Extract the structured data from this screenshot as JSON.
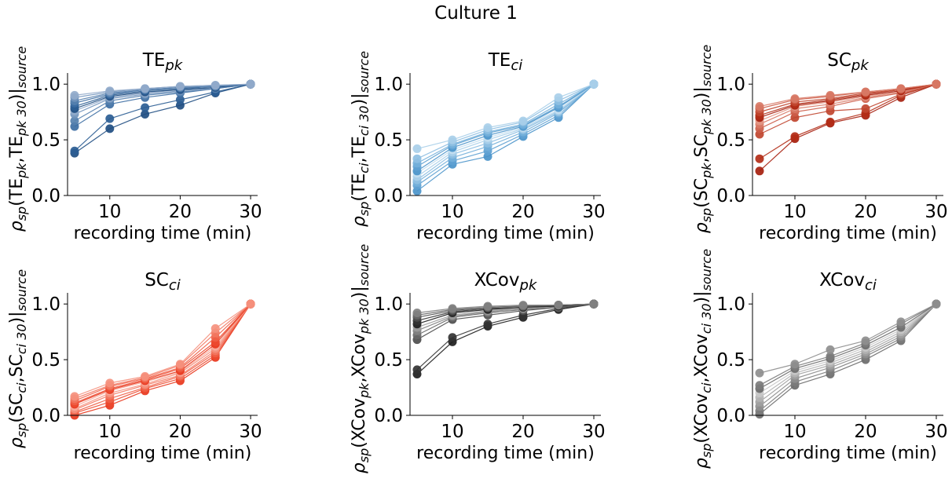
{
  "figure_title": "Culture 1",
  "chart_data": [
    {
      "type": "line",
      "title": {
        "main": "TE",
        "sub": "pk"
      },
      "xlabel": "recording time (min)",
      "ylabel": {
        "prefix": "ρ",
        "prefix_sub": "sp",
        "mid": "(TE",
        "mid_sub": "pk",
        "comma": ",TE",
        "comma_sub": "pk 30",
        "suffix": ")|",
        "suffix_sub": "source"
      },
      "x": [
        5,
        10,
        15,
        20,
        25,
        30
      ],
      "xticks": [
        10,
        20,
        30
      ],
      "xtick_labels": [
        "10",
        "20",
        "30"
      ],
      "yticks": [
        0,
        0.5,
        1
      ],
      "ytick_labels": [
        "0.0",
        "0.5",
        "1.0"
      ],
      "xlim": [
        4,
        31
      ],
      "ylim": [
        0,
        1.1
      ],
      "grid": false,
      "colors": [
        "#1f4e82",
        "#2b5d94",
        "#3d6ea3",
        "#5580ae",
        "#7194bc",
        "#92abcb"
      ],
      "series": [
        {
          "values": [
            0.38,
            0.6,
            0.73,
            0.81,
            0.92,
            1.0
          ]
        },
        {
          "values": [
            0.4,
            0.69,
            0.79,
            0.86,
            0.93,
            1.0
          ]
        },
        {
          "values": [
            0.62,
            0.82,
            0.88,
            0.92,
            0.96,
            1.0
          ]
        },
        {
          "values": [
            0.67,
            0.85,
            0.9,
            0.93,
            0.96,
            1.0
          ]
        },
        {
          "values": [
            0.73,
            0.87,
            0.91,
            0.94,
            0.97,
            1.0
          ]
        },
        {
          "values": [
            0.76,
            0.88,
            0.92,
            0.95,
            0.97,
            1.0
          ]
        },
        {
          "values": [
            0.78,
            0.89,
            0.93,
            0.95,
            0.97,
            1.0
          ]
        },
        {
          "values": [
            0.8,
            0.9,
            0.94,
            0.96,
            0.98,
            1.0
          ]
        },
        {
          "values": [
            0.83,
            0.91,
            0.95,
            0.97,
            0.98,
            1.0
          ]
        },
        {
          "values": [
            0.85,
            0.92,
            0.95,
            0.97,
            0.98,
            1.0
          ]
        },
        {
          "values": [
            0.88,
            0.93,
            0.96,
            0.98,
            0.99,
            1.0
          ]
        },
        {
          "values": [
            0.9,
            0.94,
            0.96,
            0.98,
            0.99,
            1.0
          ]
        }
      ]
    },
    {
      "type": "line",
      "title": {
        "main": "TE",
        "sub": "ci"
      },
      "xlabel": "recording time (min)",
      "ylabel": {
        "prefix": "ρ",
        "prefix_sub": "sp",
        "mid": "(TE",
        "mid_sub": "ci",
        "comma": ",TE",
        "comma_sub": "ci 30",
        "suffix": ")|",
        "suffix_sub": "source"
      },
      "x": [
        5,
        10,
        15,
        20,
        25,
        30
      ],
      "xticks": [
        10,
        20,
        30
      ],
      "xtick_labels": [
        "10",
        "20",
        "30"
      ],
      "yticks": [
        0,
        0.5,
        1
      ],
      "ytick_labels": [
        "0.0",
        "0.5",
        "1.0"
      ],
      "xlim": [
        4,
        31
      ],
      "ylim": [
        0,
        1.1
      ],
      "grid": false,
      "colors": [
        "#4a94ca",
        "#5ea1d2",
        "#74b0da",
        "#8ebfe2",
        "#a9cfe9",
        "#c3def0"
      ],
      "series": [
        {
          "values": [
            0.04,
            0.28,
            0.35,
            0.53,
            0.7,
            1.0
          ]
        },
        {
          "values": [
            0.09,
            0.31,
            0.4,
            0.55,
            0.72,
            1.0
          ]
        },
        {
          "values": [
            0.12,
            0.34,
            0.44,
            0.57,
            0.74,
            1.0
          ]
        },
        {
          "values": [
            0.14,
            0.37,
            0.47,
            0.59,
            0.75,
            1.0
          ]
        },
        {
          "values": [
            0.17,
            0.39,
            0.5,
            0.6,
            0.76,
            1.0
          ]
        },
        {
          "values": [
            0.2,
            0.41,
            0.52,
            0.61,
            0.77,
            1.0
          ]
        },
        {
          "values": [
            0.22,
            0.43,
            0.54,
            0.62,
            0.79,
            1.0
          ]
        },
        {
          "values": [
            0.26,
            0.45,
            0.56,
            0.63,
            0.8,
            1.0
          ]
        },
        {
          "values": [
            0.29,
            0.46,
            0.57,
            0.64,
            0.82,
            1.0
          ]
        },
        {
          "values": [
            0.33,
            0.48,
            0.59,
            0.66,
            0.85,
            1.0
          ]
        },
        {
          "values": [
            0.42,
            0.5,
            0.61,
            0.67,
            0.88,
            1.0
          ]
        }
      ]
    },
    {
      "type": "line",
      "title": {
        "main": "SC",
        "sub": "pk"
      },
      "xlabel": "recording time (min)",
      "ylabel": {
        "prefix": "ρ",
        "prefix_sub": "sp",
        "mid": "(SC",
        "mid_sub": "pk",
        "comma": ",SC",
        "comma_sub": "pk 30",
        "suffix": ")|",
        "suffix_sub": "source"
      },
      "x": [
        5,
        10,
        15,
        20,
        25,
        30
      ],
      "xticks": [
        10,
        20,
        30
      ],
      "xtick_labels": [
        "10",
        "20",
        "30"
      ],
      "yticks": [
        0,
        0.5,
        1
      ],
      "ytick_labels": [
        "0.0",
        "0.5",
        "1.0"
      ],
      "xlim": [
        4,
        31
      ],
      "ylim": [
        0,
        1.1
      ],
      "grid": false,
      "colors": [
        "#a61f0e",
        "#b32d17",
        "#c0452f",
        "#cc5d49",
        "#d87966",
        "#e39684"
      ],
      "series": [
        {
          "values": [
            0.22,
            0.51,
            0.65,
            0.72,
            0.88,
            1.0
          ]
        },
        {
          "values": [
            0.33,
            0.53,
            0.66,
            0.74,
            0.9,
            1.0
          ]
        },
        {
          "values": [
            0.55,
            0.7,
            0.76,
            0.78,
            0.91,
            1.0
          ]
        },
        {
          "values": [
            0.6,
            0.75,
            0.8,
            0.87,
            0.92,
            1.0
          ]
        },
        {
          "values": [
            0.64,
            0.78,
            0.82,
            0.88,
            0.93,
            1.0
          ]
        },
        {
          "values": [
            0.67,
            0.8,
            0.84,
            0.89,
            0.94,
            1.0
          ]
        },
        {
          "values": [
            0.7,
            0.81,
            0.85,
            0.9,
            0.94,
            1.0
          ]
        },
        {
          "values": [
            0.72,
            0.82,
            0.86,
            0.91,
            0.95,
            1.0
          ]
        },
        {
          "values": [
            0.75,
            0.84,
            0.87,
            0.92,
            0.95,
            1.0
          ]
        },
        {
          "values": [
            0.78,
            0.86,
            0.89,
            0.93,
            0.96,
            1.0
          ]
        },
        {
          "values": [
            0.8,
            0.87,
            0.9,
            0.93,
            0.96,
            1.0
          ]
        }
      ]
    },
    {
      "type": "line",
      "title": {
        "main": "SC",
        "sub": "ci"
      },
      "xlabel": "recording time (min)",
      "ylabel": {
        "prefix": "ρ",
        "prefix_sub": "sp",
        "mid": "(SC",
        "mid_sub": "ci",
        "comma": ",SC",
        "comma_sub": "ci 30",
        "suffix": ")|",
        "suffix_sub": "source"
      },
      "x": [
        5,
        10,
        15,
        20,
        25,
        30
      ],
      "xticks": [
        10,
        20,
        30
      ],
      "xtick_labels": [
        "10",
        "20",
        "30"
      ],
      "yticks": [
        0,
        0.5,
        1
      ],
      "ytick_labels": [
        "0.0",
        "0.5",
        "1.0"
      ],
      "xlim": [
        4,
        31
      ],
      "ylim": [
        0,
        1.1
      ],
      "grid": false,
      "colors": [
        "#e8361c",
        "#ec4a30",
        "#ef5f47",
        "#f27761",
        "#f5917e",
        "#f8ac9d"
      ],
      "series": [
        {
          "values": [
            0.0,
            0.09,
            0.22,
            0.31,
            0.52,
            1.0
          ]
        },
        {
          "values": [
            0.02,
            0.12,
            0.24,
            0.33,
            0.54,
            1.0
          ]
        },
        {
          "values": [
            0.03,
            0.15,
            0.25,
            0.35,
            0.56,
            1.0
          ]
        },
        {
          "values": [
            0.05,
            0.18,
            0.27,
            0.36,
            0.58,
            1.0
          ]
        },
        {
          "values": [
            0.06,
            0.2,
            0.28,
            0.38,
            0.6,
            1.0
          ]
        },
        {
          "values": [
            0.08,
            0.22,
            0.3,
            0.39,
            0.62,
            1.0
          ]
        },
        {
          "values": [
            0.1,
            0.23,
            0.31,
            0.4,
            0.64,
            1.0
          ]
        },
        {
          "values": [
            0.11,
            0.24,
            0.32,
            0.42,
            0.66,
            1.0
          ]
        },
        {
          "values": [
            0.13,
            0.26,
            0.33,
            0.43,
            0.7,
            1.0
          ]
        },
        {
          "values": [
            0.15,
            0.27,
            0.34,
            0.45,
            0.74,
            1.0
          ]
        },
        {
          "values": [
            0.17,
            0.29,
            0.35,
            0.46,
            0.78,
            1.0
          ]
        }
      ]
    },
    {
      "type": "line",
      "title": {
        "main": "XCov",
        "sub": "pk"
      },
      "xlabel": "recording time (min)",
      "ylabel": {
        "prefix": "ρ",
        "prefix_sub": "sp",
        "mid": "(XCov",
        "mid_sub": "pk",
        "comma": ",XCov",
        "comma_sub": "pk 30",
        "suffix": ")|",
        "suffix_sub": "source"
      },
      "x": [
        5,
        10,
        15,
        20,
        25,
        30
      ],
      "xticks": [
        10,
        20,
        30
      ],
      "xtick_labels": [
        "10",
        "20",
        "30"
      ],
      "yticks": [
        0,
        0.5,
        1
      ],
      "ytick_labels": [
        "0.0",
        "0.5",
        "1.0"
      ],
      "xlim": [
        4,
        31
      ],
      "ylim": [
        0,
        1.1
      ],
      "grid": false,
      "colors": [
        "#1e1e1e",
        "#333333",
        "#4d4d4d",
        "#676767",
        "#818181",
        "#9b9b9b"
      ],
      "series": [
        {
          "values": [
            0.37,
            0.66,
            0.8,
            0.88,
            0.95,
            1.0
          ]
        },
        {
          "values": [
            0.41,
            0.7,
            0.82,
            0.9,
            0.96,
            1.0
          ]
        },
        {
          "values": [
            0.68,
            0.86,
            0.9,
            0.94,
            0.97,
            1.0
          ]
        },
        {
          "values": [
            0.72,
            0.88,
            0.92,
            0.95,
            0.97,
            1.0
          ]
        },
        {
          "values": [
            0.76,
            0.89,
            0.93,
            0.96,
            0.98,
            1.0
          ]
        },
        {
          "values": [
            0.79,
            0.9,
            0.94,
            0.96,
            0.98,
            1.0
          ]
        },
        {
          "values": [
            0.82,
            0.92,
            0.95,
            0.97,
            0.98,
            1.0
          ]
        },
        {
          "values": [
            0.85,
            0.93,
            0.96,
            0.97,
            0.99,
            1.0
          ]
        },
        {
          "values": [
            0.88,
            0.94,
            0.97,
            0.98,
            0.99,
            1.0
          ]
        },
        {
          "values": [
            0.9,
            0.95,
            0.97,
            0.98,
            0.99,
            1.0
          ]
        },
        {
          "values": [
            0.92,
            0.96,
            0.98,
            0.99,
            0.99,
            1.0
          ]
        }
      ]
    },
    {
      "type": "line",
      "title": {
        "main": "XCov",
        "sub": "ci"
      },
      "xlabel": "recording time (min)",
      "ylabel": {
        "prefix": "ρ",
        "prefix_sub": "sp",
        "mid": "(XCov",
        "mid_sub": "ci",
        "comma": ",XCov",
        "comma_sub": "ci 30",
        "suffix": ")|",
        "suffix_sub": "source"
      },
      "x": [
        5,
        10,
        15,
        20,
        25,
        30
      ],
      "xticks": [
        10,
        20,
        30
      ],
      "xtick_labels": [
        "10",
        "20",
        "30"
      ],
      "yticks": [
        0,
        0.5,
        1
      ],
      "ytick_labels": [
        "0.0",
        "0.5",
        "1.0"
      ],
      "xlim": [
        4,
        31
      ],
      "ylim": [
        0,
        1.1
      ],
      "grid": false,
      "colors": [
        "#6b6b6b",
        "#7c7c7c",
        "#8e8e8e",
        "#a0a0a0",
        "#b3b3b3",
        "#c7c7c7"
      ],
      "series": [
        {
          "values": [
            0.01,
            0.27,
            0.37,
            0.5,
            0.67,
            1.0
          ]
        },
        {
          "values": [
            0.04,
            0.3,
            0.4,
            0.53,
            0.69,
            1.0
          ]
        },
        {
          "values": [
            0.08,
            0.33,
            0.43,
            0.55,
            0.71,
            1.0
          ]
        },
        {
          "values": [
            0.12,
            0.36,
            0.45,
            0.57,
            0.73,
            1.0
          ]
        },
        {
          "values": [
            0.16,
            0.38,
            0.47,
            0.59,
            0.75,
            1.0
          ]
        },
        {
          "values": [
            0.2,
            0.4,
            0.49,
            0.61,
            0.77,
            1.0
          ]
        },
        {
          "values": [
            0.24,
            0.42,
            0.51,
            0.63,
            0.79,
            1.0
          ]
        },
        {
          "values": [
            0.27,
            0.44,
            0.53,
            0.65,
            0.82,
            1.0
          ]
        },
        {
          "values": [
            0.38,
            0.46,
            0.59,
            0.67,
            0.84,
            1.0
          ]
        }
      ]
    }
  ]
}
